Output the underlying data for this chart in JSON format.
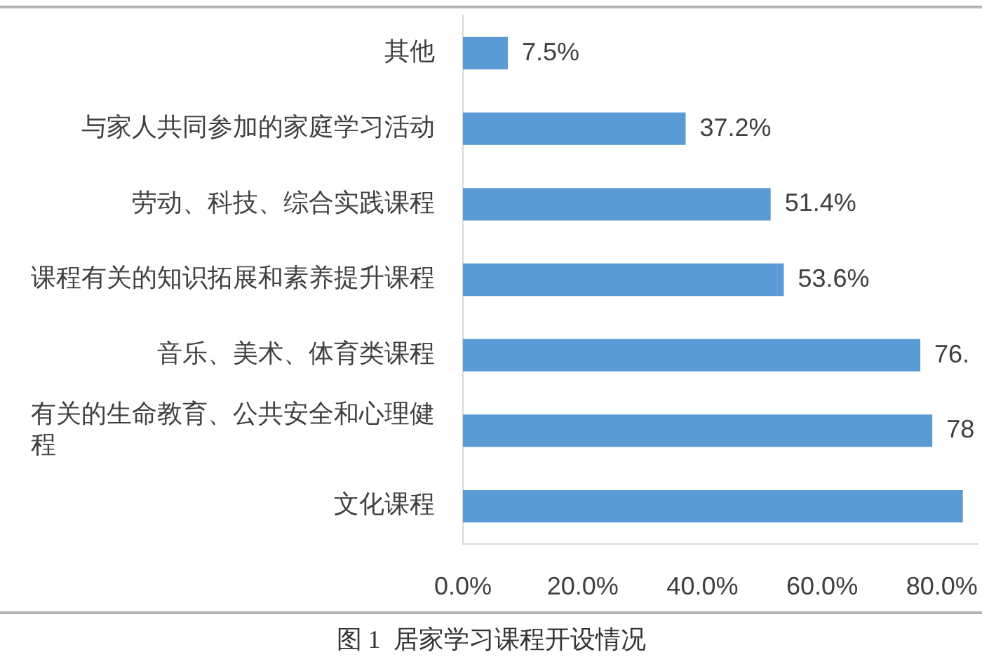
{
  "chart_data": {
    "type": "bar",
    "orientation": "horizontal",
    "title": "图 1  居家学习课程开设情况",
    "categories": [
      "其他",
      "与家人共同参加的家庭学习活动",
      "劳动、科技、综合实践课程",
      "课程有关的知识拓展和素养提升课程",
      "音乐、美术、体育类课程",
      "有关的生命教育、公共安全和心理健程",
      "文化课程"
    ],
    "values": [
      7.5,
      37.2,
      51.4,
      53.6,
      76.4,
      78.4,
      83.5
    ],
    "value_labels": [
      "7.5%",
      "37.2%",
      "51.4%",
      "53.6%",
      "76.",
      "78",
      null
    ],
    "color": "#5b9bd5",
    "xlim": [
      0,
      86
    ],
    "xticks": [
      {
        "value": 0,
        "label": "0.0%"
      },
      {
        "value": 20,
        "label": "20.0%"
      },
      {
        "value": 40,
        "label": "40.0%"
      },
      {
        "value": 60,
        "label": "60.0%"
      },
      {
        "value": 80,
        "label": "80.0%"
      }
    ]
  }
}
